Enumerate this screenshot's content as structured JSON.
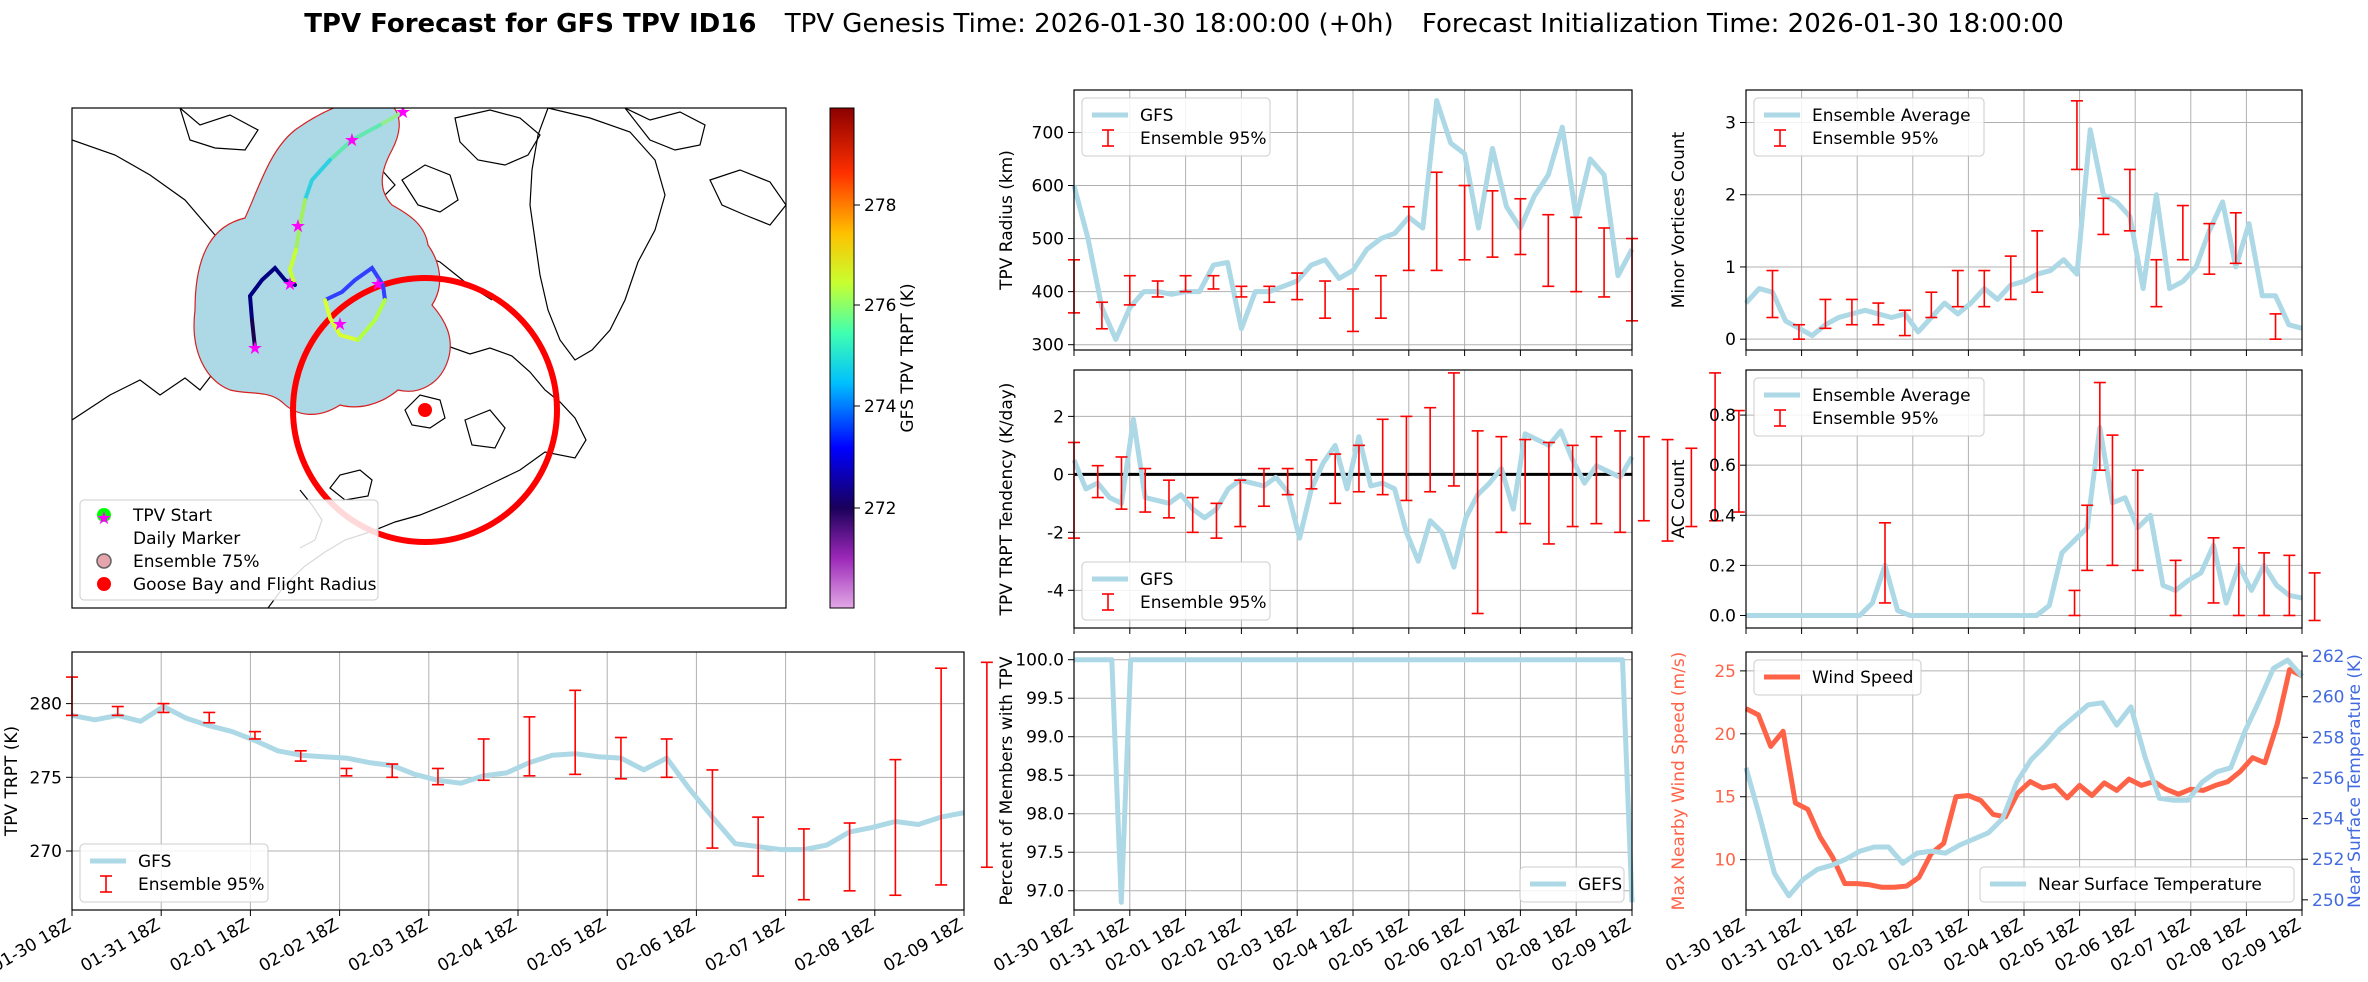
{
  "header": {
    "bold_title": "TPV Forecast for GFS TPV ID16",
    "genesis": "TPV Genesis Time: 2026-01-30 18:00:00 (+0h)",
    "init": "Forecast Initialization Time: 2026-01-30 18:00:00"
  },
  "colors": {
    "gfs": "#add8e6",
    "err": "#ff0000",
    "wind": "#ff6347",
    "temp_axis": "#4169e1",
    "grid": "#b0b0b0"
  },
  "time_ticks": [
    "01-30 18Z",
    "01-31 18Z",
    "02-01 18Z",
    "02-02 18Z",
    "02-03 18Z",
    "02-04 18Z",
    "02-05 18Z",
    "02-06 18Z",
    "02-07 18Z",
    "02-08 18Z",
    "02-09 18Z"
  ],
  "map": {
    "legend": [
      "TPV Start",
      "Daily Marker",
      "Ensemble 75%",
      "Goose Bay and Flight Radius"
    ],
    "colorbar_label": "GFS TPV TRPT (K)",
    "colorbar_ticks": [
      "272",
      "274",
      "276",
      "278"
    ]
  },
  "chart_data": [
    {
      "id": "radius",
      "type": "line",
      "ylabel": "TPV Radius (km)",
      "ylim": [
        290,
        780
      ],
      "yticks": [
        300,
        400,
        500,
        600,
        700
      ],
      "legend": [
        "GFS",
        "Ensemble 95%"
      ],
      "series": [
        {
          "name": "GFS",
          "values": [
            600,
            500,
            370,
            310,
            370,
            400,
            400,
            395,
            400,
            400,
            450,
            455,
            330,
            400,
            400,
            410,
            420,
            450,
            460,
            425,
            440,
            480,
            500,
            510,
            540,
            520,
            760,
            680,
            660,
            520,
            670,
            560,
            520,
            580,
            620,
            710,
            540,
            650,
            620,
            430,
            480
          ]
        }
      ],
      "error_bars": [
        {
          "i": 0,
          "lo": 360,
          "hi": 460
        },
        {
          "i": 2,
          "lo": 330,
          "hi": 380
        },
        {
          "i": 4,
          "lo": 375,
          "hi": 430
        },
        {
          "i": 6,
          "lo": 390,
          "hi": 420
        },
        {
          "i": 8,
          "lo": 400,
          "hi": 430
        },
        {
          "i": 10,
          "lo": 405,
          "hi": 430
        },
        {
          "i": 12,
          "lo": 390,
          "hi": 410
        },
        {
          "i": 14,
          "lo": 380,
          "hi": 410
        },
        {
          "i": 16,
          "lo": 385,
          "hi": 435
        },
        {
          "i": 18,
          "lo": 350,
          "hi": 420
        },
        {
          "i": 20,
          "lo": 325,
          "hi": 405
        },
        {
          "i": 22,
          "lo": 350,
          "hi": 430
        },
        {
          "i": 24,
          "lo": 440,
          "hi": 560
        },
        {
          "i": 26,
          "lo": 440,
          "hi": 625
        },
        {
          "i": 28,
          "lo": 460,
          "hi": 600
        },
        {
          "i": 30,
          "lo": 465,
          "hi": 590
        },
        {
          "i": 32,
          "lo": 470,
          "hi": 575
        },
        {
          "i": 34,
          "lo": 410,
          "hi": 545
        },
        {
          "i": 36,
          "lo": 400,
          "hi": 540
        },
        {
          "i": 38,
          "lo": 390,
          "hi": 520
        },
        {
          "i": 40,
          "lo": 345,
          "hi": 500
        }
      ]
    },
    {
      "id": "minor",
      "type": "line",
      "ylabel": "Minor Vortices Count",
      "ylim": [
        -0.15,
        3.45
      ],
      "yticks": [
        0,
        1,
        2,
        3
      ],
      "legend": [
        "Ensemble Average",
        "Ensemble 95%"
      ],
      "series": [
        {
          "name": "Ensemble Average",
          "values": [
            0.5,
            0.7,
            0.65,
            0.25,
            0.15,
            0.05,
            0.2,
            0.3,
            0.35,
            0.4,
            0.35,
            0.3,
            0.35,
            0.1,
            0.3,
            0.5,
            0.35,
            0.5,
            0.7,
            0.55,
            0.75,
            0.8,
            0.9,
            0.95,
            1.1,
            0.9,
            2.9,
            2.0,
            1.9,
            1.7,
            0.7,
            2.0,
            0.7,
            0.8,
            1.0,
            1.5,
            1.9,
            1.0,
            1.6,
            0.6,
            0.6,
            0.2,
            0.15
          ]
        }
      ],
      "error_bars": [
        {
          "i": 2,
          "lo": 0.3,
          "hi": 0.95
        },
        {
          "i": 4,
          "lo": 0.0,
          "hi": 0.2
        },
        {
          "i": 6,
          "lo": 0.15,
          "hi": 0.55
        },
        {
          "i": 8,
          "lo": 0.2,
          "hi": 0.55
        },
        {
          "i": 10,
          "lo": 0.2,
          "hi": 0.5
        },
        {
          "i": 12,
          "lo": 0.05,
          "hi": 0.4
        },
        {
          "i": 14,
          "lo": 0.3,
          "hi": 0.65
        },
        {
          "i": 16,
          "lo": 0.45,
          "hi": 0.95
        },
        {
          "i": 18,
          "lo": 0.45,
          "hi": 0.95
        },
        {
          "i": 20,
          "lo": 0.55,
          "hi": 1.15
        },
        {
          "i": 22,
          "lo": 0.65,
          "hi": 1.5
        },
        {
          "i": 25,
          "lo": 2.35,
          "hi": 3.3
        },
        {
          "i": 27,
          "lo": 1.45,
          "hi": 1.95
        },
        {
          "i": 29,
          "lo": 1.5,
          "hi": 2.35
        },
        {
          "i": 31,
          "lo": 0.45,
          "hi": 1.1
        },
        {
          "i": 33,
          "lo": 1.1,
          "hi": 1.85
        },
        {
          "i": 35,
          "lo": 0.9,
          "hi": 1.6
        },
        {
          "i": 37,
          "lo": 1.05,
          "hi": 1.75
        },
        {
          "i": 40,
          "lo": 0.0,
          "hi": 0.35
        }
      ]
    },
    {
      "id": "tendency",
      "type": "line",
      "ylabel": "TPV TRPT Tendency (K/day)",
      "ylim": [
        -5.3,
        3.6
      ],
      "yticks": [
        -4,
        -2,
        0,
        2
      ],
      "legend": [
        "GFS",
        "Ensemble 95%"
      ],
      "series": [
        {
          "name": "GFS",
          "values": [
            0.5,
            -0.5,
            -0.3,
            -0.8,
            -1.0,
            1.9,
            -0.8,
            -0.9,
            -1.0,
            -0.7,
            -1.2,
            -1.5,
            -1.2,
            -0.5,
            -0.2,
            -0.3,
            -0.4,
            -0.1,
            -0.6,
            -2.2,
            -0.5,
            0.4,
            1.0,
            -0.5,
            1.3,
            -0.4,
            -0.3,
            -0.5,
            -2.0,
            -3.0,
            -1.6,
            -2.0,
            -3.2,
            -1.5,
            -0.7,
            -0.3,
            0.2,
            -1.2,
            1.4,
            1.2,
            1.0,
            1.5,
            0.5,
            -0.3,
            0.3,
            0.1,
            -0.1,
            0.6
          ]
        }
      ],
      "error_bars": [
        {
          "i": 0,
          "lo": -2.2,
          "hi": 1.1
        },
        {
          "i": 2,
          "lo": -0.8,
          "hi": 0.3
        },
        {
          "i": 4,
          "lo": -1.2,
          "hi": 0.6
        },
        {
          "i": 6,
          "lo": -1.3,
          "hi": 0.2
        },
        {
          "i": 8,
          "lo": -1.5,
          "hi": -0.2
        },
        {
          "i": 10,
          "lo": -2.0,
          "hi": -0.8
        },
        {
          "i": 12,
          "lo": -2.2,
          "hi": -1.0
        },
        {
          "i": 14,
          "lo": -1.8,
          "hi": -0.2
        },
        {
          "i": 16,
          "lo": -1.1,
          "hi": 0.2
        },
        {
          "i": 18,
          "lo": -0.7,
          "hi": 0.2
        },
        {
          "i": 20,
          "lo": -0.5,
          "hi": 0.5
        },
        {
          "i": 22,
          "lo": -1.0,
          "hi": 0.7
        },
        {
          "i": 24,
          "lo": -0.6,
          "hi": 1.0
        },
        {
          "i": 26,
          "lo": -0.7,
          "hi": 1.9
        },
        {
          "i": 28,
          "lo": -0.9,
          "hi": 2.0
        },
        {
          "i": 30,
          "lo": -0.6,
          "hi": 2.3
        },
        {
          "i": 32,
          "lo": -0.4,
          "hi": 3.5
        },
        {
          "i": 34,
          "lo": -4.8,
          "hi": 1.5
        },
        {
          "i": 36,
          "lo": -2.0,
          "hi": 1.3
        },
        {
          "i": 38,
          "lo": -1.7,
          "hi": 1.2
        },
        {
          "i": 40,
          "lo": -2.4,
          "hi": 1.1
        },
        {
          "i": 42,
          "lo": -1.8,
          "hi": 1.0
        },
        {
          "i": 44,
          "lo": -1.7,
          "hi": 1.3
        },
        {
          "i": 46,
          "lo": -2.0,
          "hi": 1.5
        },
        {
          "i": 48,
          "lo": -1.6,
          "hi": 1.3
        },
        {
          "i": 50,
          "lo": -2.3,
          "hi": 1.2
        },
        {
          "i": 52,
          "lo": -1.8,
          "hi": 0.9
        },
        {
          "i": 54,
          "lo": -1.6,
          "hi": 3.5
        },
        {
          "i": 56,
          "lo": -1.3,
          "hi": 2.2
        },
        {
          "i": 58,
          "lo": -1.9,
          "hi": 2.0
        }
      ]
    },
    {
      "id": "ac",
      "type": "line",
      "ylabel": "AC Count",
      "ylim": [
        -0.05,
        0.98
      ],
      "yticks": [
        0.0,
        0.2,
        0.4,
        0.6,
        0.8
      ],
      "legend": [
        "Ensemble Average",
        "Ensemble 95%"
      ],
      "series": [
        {
          "name": "Ensemble Average",
          "values": [
            0,
            0,
            0,
            0,
            0,
            0,
            0,
            0,
            0,
            0,
            0.05,
            0.2,
            0.02,
            0,
            0,
            0,
            0,
            0,
            0,
            0,
            0,
            0,
            0,
            0,
            0.04,
            0.25,
            0.3,
            0.35,
            0.75,
            0.45,
            0.47,
            0.35,
            0.4,
            0.12,
            0.1,
            0.14,
            0.17,
            0.28,
            0.05,
            0.2,
            0.1,
            0.2,
            0.12,
            0.08,
            0.07
          ]
        }
      ],
      "error_bars": [
        {
          "i": 11,
          "lo": 0.05,
          "hi": 0.37
        },
        {
          "i": 26,
          "lo": 0.0,
          "hi": 0.1
        },
        {
          "i": 27,
          "lo": 0.18,
          "hi": 0.44
        },
        {
          "i": 28,
          "lo": 0.58,
          "hi": 0.93
        },
        {
          "i": 29,
          "lo": 0.2,
          "hi": 0.72
        },
        {
          "i": 31,
          "lo": 0.18,
          "hi": 0.58
        },
        {
          "i": 34,
          "lo": 0.0,
          "hi": 0.22
        },
        {
          "i": 37,
          "lo": 0.05,
          "hi": 0.31
        },
        {
          "i": 39,
          "lo": 0.0,
          "hi": 0.27
        },
        {
          "i": 41,
          "lo": 0.0,
          "hi": 0.25
        },
        {
          "i": 43,
          "lo": 0.0,
          "hi": 0.24
        },
        {
          "i": 45,
          "lo": -0.02,
          "hi": 0.17
        }
      ]
    },
    {
      "id": "trpt",
      "type": "line",
      "ylabel": "TPV TRPT (K)",
      "ylim": [
        266,
        283.5
      ],
      "yticks": [
        270,
        275,
        280
      ],
      "legend": [
        "GFS",
        "Ensemble 95%"
      ],
      "series": [
        {
          "name": "GFS",
          "values": [
            279.2,
            278.9,
            279.2,
            278.8,
            279.8,
            279.0,
            278.5,
            278.1,
            277.5,
            276.8,
            276.5,
            276.4,
            276.3,
            276.0,
            275.8,
            275.2,
            274.8,
            274.6,
            275.1,
            275.3,
            276.0,
            276.5,
            276.6,
            276.4,
            276.3,
            275.5,
            276.3,
            274.2,
            272.3,
            270.5,
            270.3,
            270.1,
            270.1,
            270.4,
            271.3,
            271.6,
            272.0,
            271.8,
            272.3,
            272.6
          ]
        }
      ],
      "error_bars": [
        {
          "i": 0,
          "lo": 279.2,
          "hi": 281.8
        },
        {
          "i": 2,
          "lo": 279.2,
          "hi": 279.8
        },
        {
          "i": 4,
          "lo": 279.4,
          "hi": 280.0
        },
        {
          "i": 6,
          "lo": 278.7,
          "hi": 279.4
        },
        {
          "i": 8,
          "lo": 277.6,
          "hi": 278.1
        },
        {
          "i": 10,
          "lo": 276.1,
          "hi": 276.8
        },
        {
          "i": 12,
          "lo": 275.1,
          "hi": 275.6
        },
        {
          "i": 14,
          "lo": 275.0,
          "hi": 275.9
        },
        {
          "i": 16,
          "lo": 274.5,
          "hi": 275.6
        },
        {
          "i": 18,
          "lo": 274.8,
          "hi": 277.6
        },
        {
          "i": 20,
          "lo": 275.1,
          "hi": 279.1
        },
        {
          "i": 22,
          "lo": 275.2,
          "hi": 280.9
        },
        {
          "i": 24,
          "lo": 274.9,
          "hi": 277.7
        },
        {
          "i": 26,
          "lo": 275.0,
          "hi": 277.6
        },
        {
          "i": 28,
          "lo": 270.2,
          "hi": 275.5
        },
        {
          "i": 30,
          "lo": 268.3,
          "hi": 272.3
        },
        {
          "i": 32,
          "lo": 266.7,
          "hi": 271.5
        },
        {
          "i": 34,
          "lo": 267.3,
          "hi": 271.9
        },
        {
          "i": 36,
          "lo": 267.0,
          "hi": 276.2
        },
        {
          "i": 38,
          "lo": 267.7,
          "hi": 282.4
        },
        {
          "i": 40,
          "lo": 268.9,
          "hi": 282.8
        }
      ]
    },
    {
      "id": "percent",
      "type": "line",
      "ylabel": "Percent of Members with TPV",
      "ylim": [
        96.75,
        100.1
      ],
      "yticks": [
        97.0,
        97.5,
        98.0,
        98.5,
        99.0,
        99.5,
        100.0
      ],
      "legend": [
        "GEFS"
      ],
      "series": [
        {
          "name": "GEFS",
          "values": [
            100,
            100,
            100,
            100,
            100,
            96.85,
            100,
            100,
            100,
            100,
            100,
            100,
            100,
            100,
            100,
            100,
            100,
            100,
            100,
            100,
            100,
            100,
            100,
            100,
            100,
            100,
            100,
            100,
            100,
            100,
            100,
            100,
            100,
            100,
            100,
            100,
            100,
            100,
            100,
            100,
            100,
            100,
            100,
            100,
            100,
            100,
            100,
            100,
            100,
            100,
            100,
            100,
            100,
            100,
            100,
            100,
            100,
            100,
            100,
            96.85
          ]
        }
      ]
    },
    {
      "id": "wind",
      "type": "line",
      "ylabel": "Max Nearby Wind Speed (m/s)",
      "ylabel_right": "Near Surface Temperature (K)",
      "ylim": [
        6,
        26.5
      ],
      "yticks": [
        10,
        15,
        20,
        25
      ],
      "ylim_right": [
        249.5,
        262.2
      ],
      "yticks_right": [
        250,
        252,
        254,
        256,
        258,
        260,
        262
      ],
      "legend": [
        "Wind Speed"
      ],
      "legend_right": [
        "Near Surface Temperature"
      ],
      "series": [
        {
          "name": "Wind Speed",
          "values": [
            22.0,
            21.5,
            19.0,
            20.2,
            14.5,
            14.0,
            11.8,
            10.2,
            8.1,
            8.1,
            8.0,
            7.8,
            7.8,
            7.9,
            8.6,
            10.5,
            11.3,
            15.0,
            15.1,
            14.7,
            13.6,
            13.4,
            15.3,
            16.2,
            15.7,
            15.9,
            14.9,
            15.9,
            15.1,
            16.1,
            15.5,
            16.4,
            15.9,
            16.2,
            15.6,
            15.2,
            15.6,
            15.5,
            15.9,
            16.2,
            17.0,
            18.1,
            17.7,
            20.8,
            25.1,
            24.6
          ]
        },
        {
          "name": "Near Surface Temperature",
          "values": [
            256.5,
            254.0,
            251.3,
            250.2,
            251.0,
            251.5,
            251.7,
            252.0,
            252.4,
            252.6,
            252.6,
            251.8,
            252.3,
            252.4,
            252.3,
            252.7,
            253.0,
            253.3,
            254.0,
            255.8,
            256.9,
            257.6,
            258.4,
            259.0,
            259.6,
            259.7,
            258.6,
            259.5,
            257.0,
            255.0,
            254.9,
            254.9,
            255.8,
            256.3,
            256.5,
            258.3,
            259.8,
            261.4,
            261.8,
            261.0
          ]
        }
      ]
    }
  ]
}
